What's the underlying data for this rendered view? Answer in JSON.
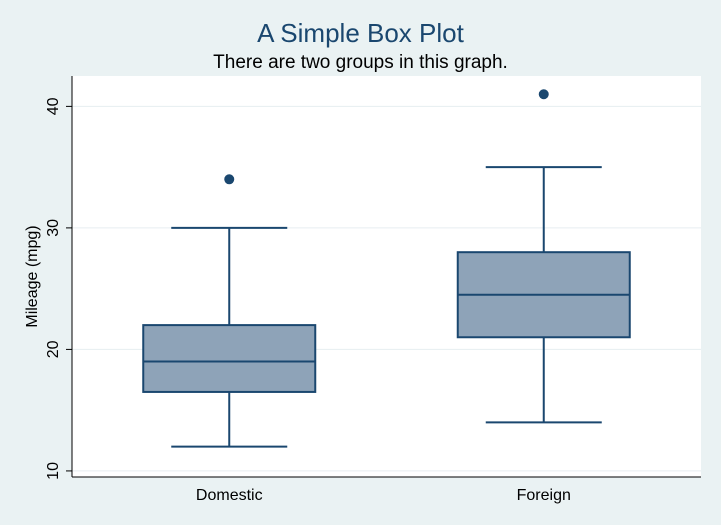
{
  "chart_data": {
    "type": "box",
    "title": "A Simple Box Plot",
    "subtitle": "There are two groups in this graph.",
    "xlabel": "",
    "ylabel": "Mileage (mpg)",
    "ylim": [
      9.5,
      42.5
    ],
    "yticks": [
      10,
      20,
      30,
      40
    ],
    "grid": true,
    "categories": [
      "Domestic",
      "Foreign"
    ],
    "boxes": [
      {
        "category": "Domestic",
        "whisker_low": 12,
        "q1": 16.5,
        "median": 19,
        "q3": 22,
        "whisker_high": 30,
        "outliers": [
          34
        ]
      },
      {
        "category": "Foreign",
        "whisker_low": 14,
        "q1": 21,
        "median": 24.5,
        "q3": 28,
        "whisker_high": 35,
        "outliers": [
          41
        ]
      }
    ],
    "colors": {
      "box_fill": "#8ea3b8",
      "box_stroke": "#1a476f",
      "plot_bg": "#ffffff",
      "page_bg": "#eaf2f3",
      "grid": "#e6eef0"
    }
  }
}
